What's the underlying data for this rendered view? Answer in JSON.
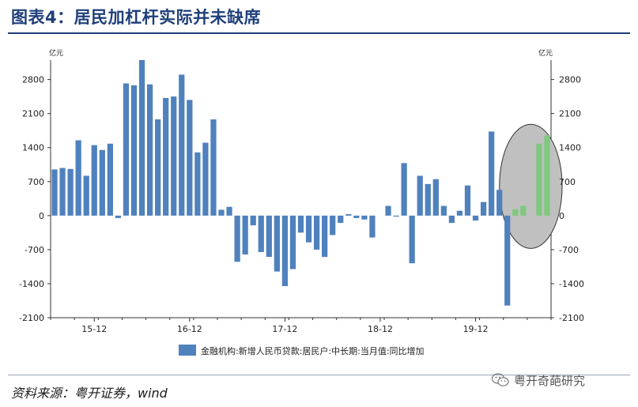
{
  "page": {
    "title": "图表4：居民加杠杆实际并未缺席",
    "source": "资料来源：粤开证券，wind",
    "watermark": "粤开奇葩研究"
  },
  "chart_data": {
    "type": "bar",
    "unit_left": "亿元",
    "unit_right": "亿元",
    "ylim": [
      -2100,
      3200
    ],
    "yticks": [
      -2100,
      -1400,
      -700,
      0,
      700,
      1400,
      2100,
      2800
    ],
    "xtick_labels": [
      {
        "label": "15-12",
        "index": 5
      },
      {
        "label": "16-12",
        "index": 17
      },
      {
        "label": "17-12",
        "index": 29
      },
      {
        "label": "18-12",
        "index": 41
      },
      {
        "label": "19-12",
        "index": 53
      }
    ],
    "series": [
      {
        "name": "金融机构:新增人民币贷款:居民户:中长期:当月值:同比增加",
        "color": "#4f81bd",
        "values": [
          950,
          980,
          960,
          1550,
          820,
          1450,
          1350,
          1480,
          -50,
          2720,
          2680,
          3200,
          2700,
          1980,
          2420,
          2450,
          2900,
          2380,
          1300,
          1500,
          1980,
          120,
          180,
          -950,
          -800,
          -200,
          -750,
          -850,
          -1150,
          -1450,
          -1100,
          -350,
          -550,
          -700,
          -850,
          -400,
          -150,
          30,
          -50,
          -80,
          -450,
          0,
          200,
          -20,
          1080,
          -980,
          820,
          650,
          750,
          200,
          -150,
          100,
          620,
          -100,
          280,
          1730,
          530,
          -1850,
          130,
          200,
          0,
          1480,
          1650
        ],
        "highlight_color": "#7fc97f",
        "highlight_indices": [
          58,
          59,
          61,
          62
        ]
      }
    ],
    "annotation": {
      "shape": "ellipse",
      "fill": "#c0c0c0",
      "around_indices": [
        58,
        62
      ]
    },
    "grid": false,
    "legend_position": "bottom"
  }
}
